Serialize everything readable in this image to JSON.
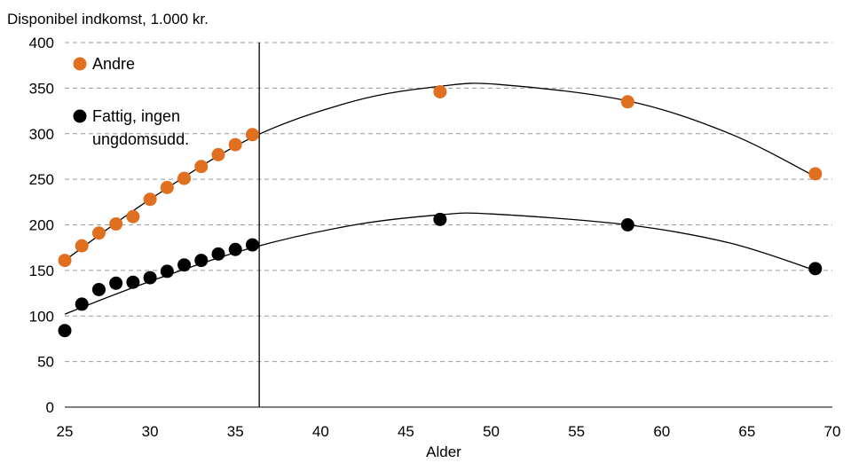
{
  "chart_data": {
    "type": "scatter",
    "title": "",
    "ylabel": "Disponibel indkomst, 1.000 kr.",
    "xlabel": "Alder",
    "xlim": [
      25,
      70
    ],
    "ylim": [
      0,
      400
    ],
    "x_ticks": [
      "25",
      "30",
      "35",
      "40",
      "45",
      "50",
      "55",
      "60",
      "65",
      "70"
    ],
    "y_ticks": [
      "0",
      "50",
      "100",
      "150",
      "200",
      "250",
      "300",
      "350",
      "400"
    ],
    "grid": "horizontal dashed",
    "legend": "top-left",
    "vertical_line_x": 36.4,
    "series": [
      {
        "name": "Andre",
        "color": "#e07020",
        "points": [
          {
            "x": 25,
            "y": 161
          },
          {
            "x": 26,
            "y": 177
          },
          {
            "x": 27,
            "y": 191
          },
          {
            "x": 28,
            "y": 201
          },
          {
            "x": 29,
            "y": 209
          },
          {
            "x": 30,
            "y": 228
          },
          {
            "x": 31,
            "y": 241
          },
          {
            "x": 32,
            "y": 251
          },
          {
            "x": 33,
            "y": 264
          },
          {
            "x": 34,
            "y": 277
          },
          {
            "x": 35,
            "y": 288
          },
          {
            "x": 36,
            "y": 299
          },
          {
            "x": 47,
            "y": 346
          },
          {
            "x": 58,
            "y": 335
          },
          {
            "x": 69,
            "y": 256
          }
        ],
        "trend": [
          {
            "x": 25,
            "y": 161
          },
          {
            "x": 30,
            "y": 228
          },
          {
            "x": 36,
            "y": 296
          },
          {
            "x": 42,
            "y": 336
          },
          {
            "x": 47,
            "y": 352
          },
          {
            "x": 50.5,
            "y": 354
          },
          {
            "x": 58,
            "y": 336
          },
          {
            "x": 64,
            "y": 300
          },
          {
            "x": 69,
            "y": 253
          }
        ]
      },
      {
        "name": "Fattig, ingen ungdomsudd.",
        "label_lines": [
          "Fattig, ingen",
          "ungdomsudd."
        ],
        "color": "#000000",
        "points": [
          {
            "x": 25,
            "y": 84
          },
          {
            "x": 26,
            "y": 113
          },
          {
            "x": 27,
            "y": 129
          },
          {
            "x": 28,
            "y": 136
          },
          {
            "x": 29,
            "y": 137
          },
          {
            "x": 30,
            "y": 142
          },
          {
            "x": 31,
            "y": 149
          },
          {
            "x": 32,
            "y": 156
          },
          {
            "x": 33,
            "y": 161
          },
          {
            "x": 34,
            "y": 168
          },
          {
            "x": 35,
            "y": 173
          },
          {
            "x": 36,
            "y": 178
          },
          {
            "x": 47,
            "y": 206
          },
          {
            "x": 58,
            "y": 200
          },
          {
            "x": 69,
            "y": 152
          }
        ],
        "trend": [
          {
            "x": 25,
            "y": 102
          },
          {
            "x": 30,
            "y": 138
          },
          {
            "x": 36,
            "y": 175
          },
          {
            "x": 42,
            "y": 200
          },
          {
            "x": 47,
            "y": 211
          },
          {
            "x": 50,
            "y": 212
          },
          {
            "x": 58,
            "y": 200
          },
          {
            "x": 64,
            "y": 180
          },
          {
            "x": 69,
            "y": 150
          }
        ]
      }
    ]
  }
}
